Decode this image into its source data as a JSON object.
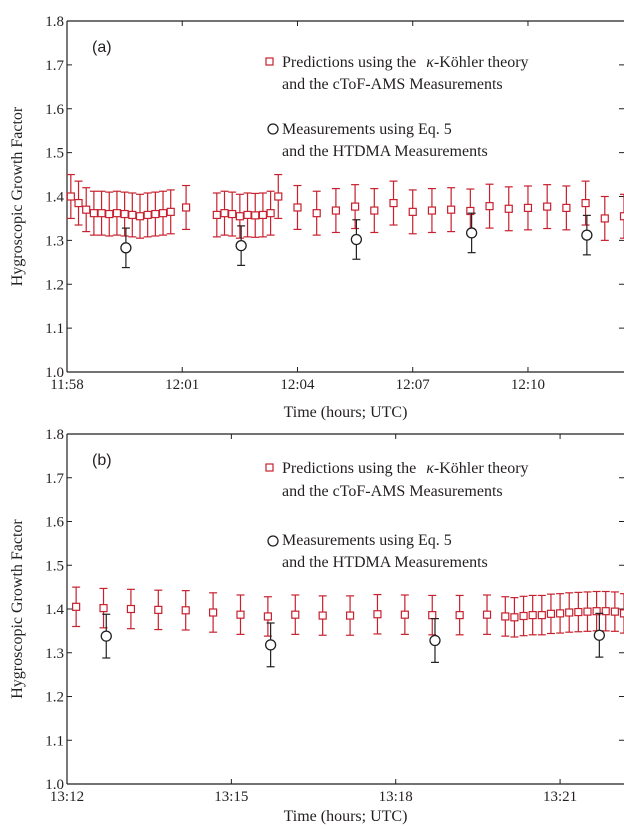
{
  "chart_data": [
    {
      "type": "scatter",
      "panel_label": "(a)",
      "xlabel": "Time (hours; UTC)",
      "ylabel": "Hygroscopic Growth Factor",
      "x_start": "11:58",
      "x_end": "12:12:30",
      "x_ticks": [
        "11:58",
        "12:01",
        "12:04",
        "12:07",
        "12:10"
      ],
      "ylim": [
        1.0,
        1.8
      ],
      "y_ticks": [
        "1.0",
        "1.1",
        "1.2",
        "1.3",
        "1.4",
        "1.5",
        "1.6",
        "1.7",
        "1.8"
      ],
      "legend_position": "top-right",
      "series": [
        {
          "legend_lines": [
            "Predictions using the ",
            "κ",
            "-Köhler theory",
            "and the cToF-AMS Measurements"
          ],
          "marker": "square",
          "color": "#c8202e",
          "x": [
            "11:58:06",
            "11:58:18",
            "11:58:30",
            "11:58:42",
            "11:58:54",
            "11:59:06",
            "11:59:18",
            "11:59:30",
            "11:59:42",
            "11:59:54",
            "12:00:06",
            "12:00:18",
            "12:00:30",
            "12:00:42",
            "12:01:06",
            "12:01:54",
            "12:02:06",
            "12:02:18",
            "12:02:30",
            "12:02:42",
            "12:02:54",
            "12:03:06",
            "12:03:18",
            "12:03:30",
            "12:04:00",
            "12:04:30",
            "12:05:00",
            "12:05:30",
            "12:06:00",
            "12:06:30",
            "12:07:00",
            "12:07:30",
            "12:08:00",
            "12:08:30",
            "12:09:00",
            "12:09:30",
            "12:10:00",
            "12:10:30",
            "12:11:00",
            "12:11:30",
            "12:12:00",
            "12:12:30"
          ],
          "y": [
            1.4,
            1.385,
            1.37,
            1.362,
            1.362,
            1.36,
            1.362,
            1.36,
            1.358,
            1.355,
            1.358,
            1.36,
            1.362,
            1.365,
            1.375,
            1.358,
            1.362,
            1.36,
            1.355,
            1.358,
            1.357,
            1.358,
            1.362,
            1.4,
            1.375,
            1.362,
            1.368,
            1.377,
            1.368,
            1.385,
            1.365,
            1.368,
            1.37,
            1.367,
            1.378,
            1.372,
            1.374,
            1.377,
            1.374,
            1.385,
            1.35,
            1.355
          ],
          "error": 0.05
        },
        {
          "legend_lines": [
            "Measurements using Eq. 5",
            "and the HTDMA Measurements"
          ],
          "marker": "circle",
          "color": "#231f20",
          "x": [
            "11:59:32",
            "12:02:32",
            "12:05:32",
            "12:08:32",
            "12:11:32"
          ],
          "y": [
            1.283,
            1.288,
            1.302,
            1.317,
            1.312
          ],
          "error": 0.045
        }
      ]
    },
    {
      "type": "scatter",
      "panel_label": "(b)",
      "xlabel": "Time (hours; UTC)",
      "ylabel": "Hygroscopic Growth Factor",
      "x_start": "13:12",
      "x_end": "13:22:10",
      "x_ticks": [
        "13:12",
        "13:15",
        "13:18",
        "13:21"
      ],
      "ylim": [
        1.0,
        1.8
      ],
      "y_ticks": [
        "1.0",
        "1.1",
        "1.2",
        "1.3",
        "1.4",
        "1.5",
        "1.6",
        "1.7",
        "1.8"
      ],
      "legend_position": "top-right",
      "series": [
        {
          "legend_lines": [
            "Predictions using the ",
            "κ",
            "-Köhler theory",
            "and the cToF-AMS Measurements"
          ],
          "marker": "square",
          "color": "#c8202e",
          "x": [
            "13:12:10",
            "13:12:40",
            "13:13:10",
            "13:13:40",
            "13:14:10",
            "13:14:40",
            "13:15:10",
            "13:15:40",
            "13:16:10",
            "13:16:40",
            "13:17:10",
            "13:17:40",
            "13:18:10",
            "13:18:40",
            "13:19:10",
            "13:19:40",
            "13:20:00",
            "13:20:10",
            "13:20:20",
            "13:20:30",
            "13:20:40",
            "13:20:50",
            "13:21:00",
            "13:21:10",
            "13:21:20",
            "13:21:30",
            "13:21:40",
            "13:21:50",
            "13:22:00",
            "13:22:10"
          ],
          "y": [
            1.405,
            1.402,
            1.4,
            1.398,
            1.397,
            1.392,
            1.387,
            1.383,
            1.387,
            1.385,
            1.385,
            1.388,
            1.387,
            1.386,
            1.386,
            1.387,
            1.383,
            1.381,
            1.384,
            1.386,
            1.386,
            1.389,
            1.39,
            1.392,
            1.393,
            1.394,
            1.395,
            1.395,
            1.394,
            1.39
          ],
          "error": 0.045
        },
        {
          "legend_lines": [
            "Measurements using Eq. 5",
            "and the HTDMA Measurements"
          ],
          "marker": "circle",
          "color": "#231f20",
          "x": [
            "13:12:43",
            "13:15:43",
            "13:18:43",
            "13:21:43"
          ],
          "y": [
            1.338,
            1.318,
            1.328,
            1.34
          ],
          "error": 0.05
        }
      ]
    }
  ]
}
